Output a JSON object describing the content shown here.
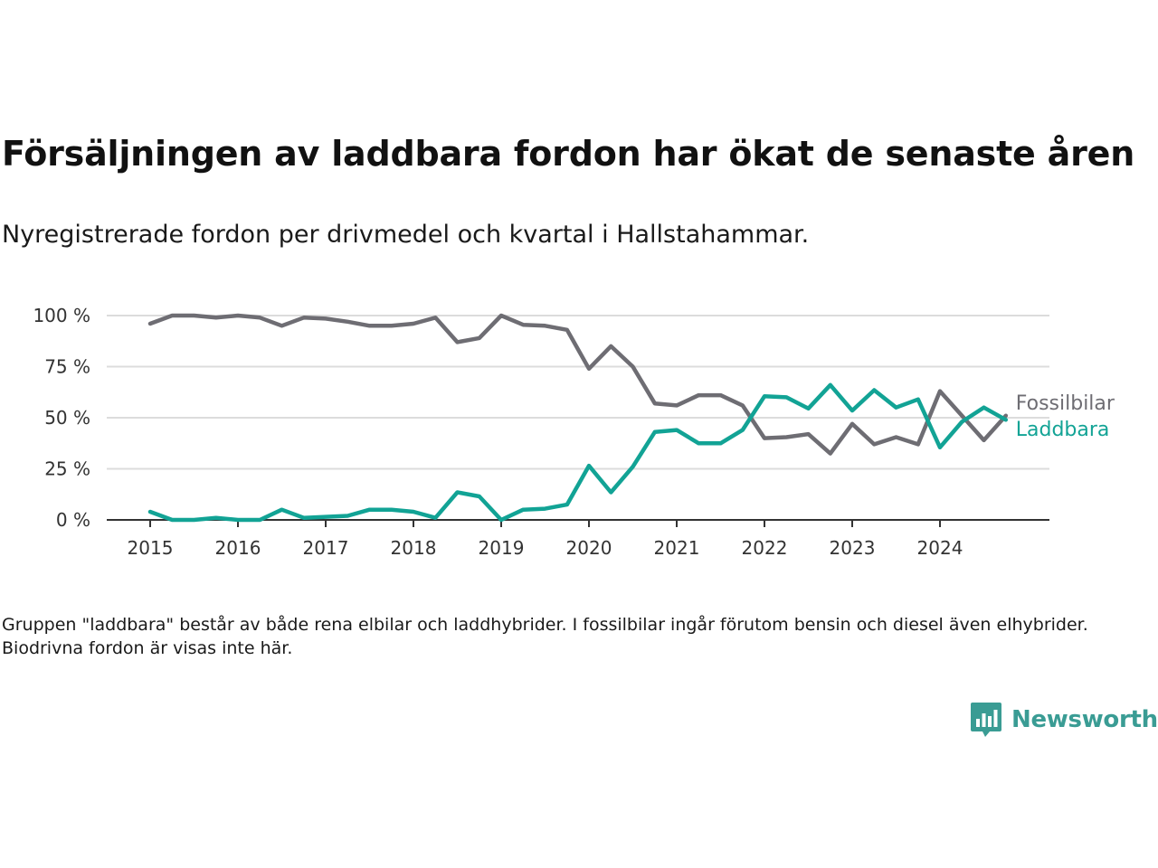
{
  "title": "Försäljningen av laddbara fordon har ökat de senaste åren",
  "subtitle": "Nyregistrerade fordon per drivmedel och kvartal i Hallstahammar.",
  "footnote": "Gruppen \"laddbara\" består av både rena elbilar och laddhybrider. I fossilbilar ingår förutom bensin och diesel även elhybrider. Biodrivna fordon är visas inte här.",
  "brand": {
    "name": "Newsworthy",
    "icon": "newsworthy-logo-icon",
    "color": "#3a9c94"
  },
  "chart_data": {
    "type": "line",
    "x": [
      2015.0,
      2015.25,
      2015.5,
      2015.75,
      2016.0,
      2016.25,
      2016.5,
      2016.75,
      2017.0,
      2017.25,
      2017.5,
      2017.75,
      2018.0,
      2018.25,
      2018.5,
      2018.75,
      2019.0,
      2019.25,
      2019.5,
      2019.75,
      2020.0,
      2020.25,
      2020.5,
      2020.75,
      2021.0,
      2021.25,
      2021.5,
      2021.75,
      2022.0,
      2022.25,
      2022.5,
      2022.75,
      2023.0,
      2023.25,
      2023.5,
      2023.75,
      2024.0,
      2024.25,
      2024.5,
      2024.75
    ],
    "xticks": [
      "2015",
      "2016",
      "2017",
      "2018",
      "2019",
      "2020",
      "2021",
      "2022",
      "2023",
      "2024"
    ],
    "yticks": [
      "0 %",
      "25 %",
      "50 %",
      "75 %",
      "100 %"
    ],
    "ylim": [
      0,
      100
    ],
    "grid": true,
    "series": [
      {
        "name": "Fossilbilar",
        "color": "#6e6d73",
        "values": [
          96,
          100,
          100,
          99,
          100,
          99,
          95,
          99,
          98.5,
          97,
          95,
          95,
          96,
          99,
          87,
          89,
          100,
          95.5,
          95,
          93,
          74,
          85,
          75,
          57,
          56,
          61,
          61,
          56,
          40,
          40.5,
          42,
          32.5,
          47,
          37,
          40.5,
          37,
          63,
          51,
          39,
          51
        ]
      },
      {
        "name": "Laddbara",
        "color": "#12a395",
        "values": [
          4,
          0,
          0,
          1,
          0,
          0,
          5,
          1,
          1.5,
          2,
          5,
          5,
          4,
          1,
          13.5,
          11.5,
          0,
          5,
          5.5,
          7.5,
          26.5,
          13.5,
          26,
          43,
          44,
          37.5,
          37.5,
          44,
          60.5,
          60,
          54.5,
          66,
          53.5,
          63.5,
          55,
          59,
          35.5,
          48,
          55,
          49
        ]
      }
    ]
  }
}
